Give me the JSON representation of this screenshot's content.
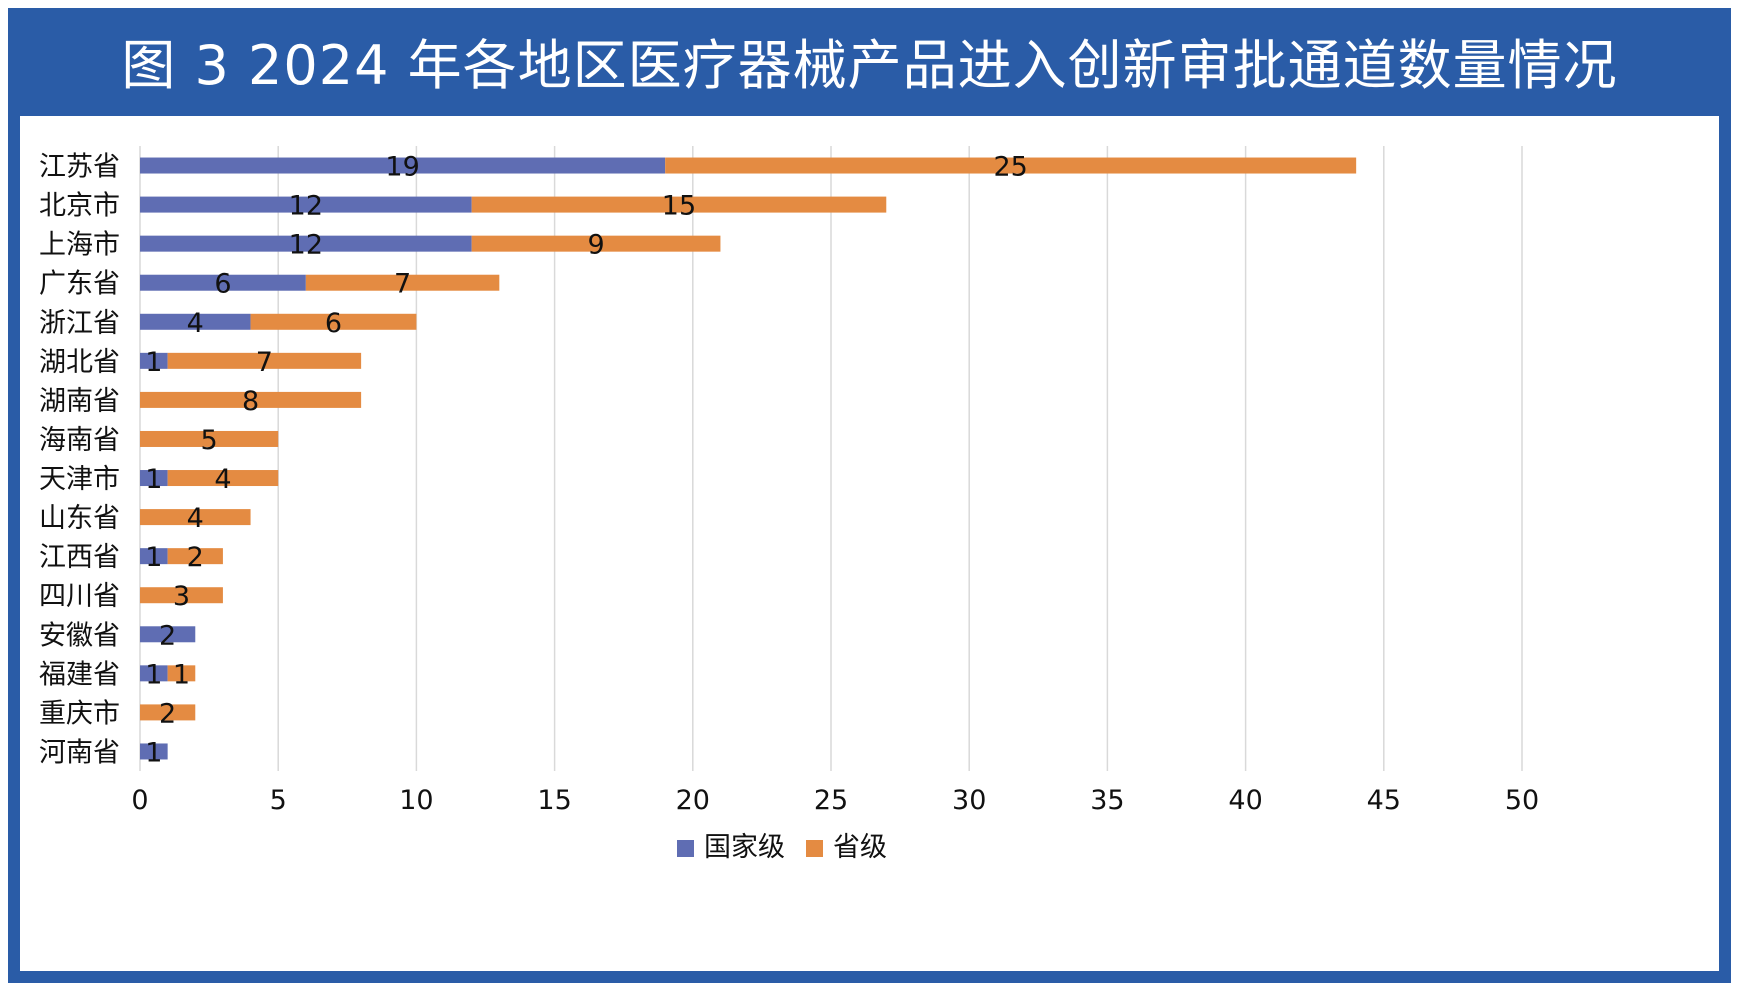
{
  "title": "图 3 2024 年各地区医疗器械产品进入创新审批通道数量情况",
  "colors": {
    "frame": "#2a5ca7",
    "national": "#5f6db3",
    "provincial": "#e48b42",
    "grid": "#d9d9d9"
  },
  "chart_data": {
    "type": "bar",
    "orientation": "horizontal",
    "stacked": true,
    "title": "图 3 2024 年各地区医疗器械产品进入创新审批通道数量情况",
    "categories": [
      "江苏省",
      "北京市",
      "上海市",
      "广东省",
      "浙江省",
      "湖北省",
      "湖南省",
      "海南省",
      "天津市",
      "山东省",
      "江西省",
      "四川省",
      "安徽省",
      "福建省",
      "重庆市",
      "河南省"
    ],
    "series": [
      {
        "name": "国家级",
        "color": "#5f6db3",
        "values": [
          19,
          12,
          12,
          6,
          4,
          1,
          0,
          0,
          1,
          0,
          1,
          0,
          2,
          1,
          0,
          1
        ]
      },
      {
        "name": "省级",
        "color": "#e48b42",
        "values": [
          25,
          15,
          9,
          7,
          6,
          7,
          8,
          5,
          4,
          4,
          2,
          3,
          0,
          1,
          2,
          0
        ]
      }
    ],
    "xlim": [
      0,
      50
    ],
    "xticks": [
      0,
      5,
      10,
      15,
      20,
      25,
      30,
      35,
      40,
      45,
      50
    ],
    "grid": true,
    "legend_position": "bottom"
  }
}
